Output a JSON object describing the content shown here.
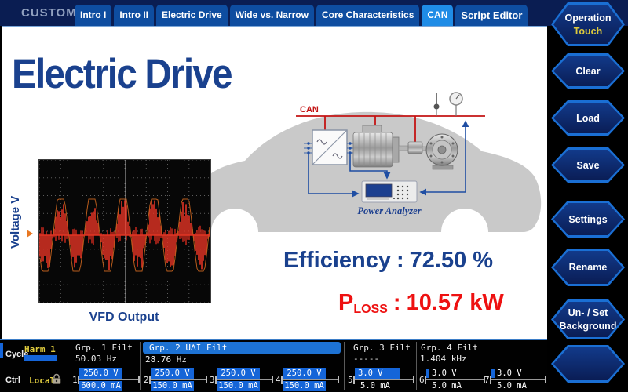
{
  "badge": "CUSTOM",
  "tabs": [
    {
      "label": "Intro I",
      "active": false
    },
    {
      "label": "Intro II",
      "active": false
    },
    {
      "label": "Electric Drive",
      "active": false
    },
    {
      "label": "Wide vs. Narrow",
      "active": false
    },
    {
      "label": "Core Characteristics",
      "active": false
    },
    {
      "label": "CAN",
      "active": true
    },
    {
      "label": "Script Editor",
      "active": false
    }
  ],
  "sidebar": {
    "buttons": [
      {
        "line1": "Operation",
        "sub": "Touch"
      },
      {
        "line1": "Clear"
      },
      {
        "line1": "Load"
      },
      {
        "line1": "Save"
      },
      {
        "line1": "Settings"
      },
      {
        "line1": "Rename"
      },
      {
        "line1": "Un- / Set",
        "line2": "Background"
      },
      {
        "line1": ""
      }
    ]
  },
  "main": {
    "title": "Electric Drive",
    "scope": {
      "ylabel": "Voltage V",
      "caption": "VFD Output",
      "cycles": 5.5
    },
    "diagram": {
      "bus_label": "CAN",
      "analyzer_label": "Power Analyzer"
    },
    "efficiency": {
      "label": "Efficiency",
      "separator": ":",
      "value": "72.50 %"
    },
    "ploss": {
      "symbol": "P",
      "subscript": "LOSS",
      "separator": ":",
      "value": "10.57 kW"
    }
  },
  "status": {
    "cycle_label": "Cycle",
    "cycle_value": "Harm 1",
    "ctrl_label": "Ctrl",
    "ctrl_value": "Local",
    "groups": [
      {
        "name": "Grp. 1 Filt",
        "freq": "50.03  Hz",
        "selected": false
      },
      {
        "name": "Grp. 2 U∆I Filt",
        "freq": "28.76  Hz",
        "selected": true
      },
      {
        "name": "Grp. 3 Filt",
        "freq": "-----",
        "selected": false
      },
      {
        "name": "Grp. 4 Filt",
        "freq": "1.404 kHz",
        "selected": false
      }
    ],
    "channels": [
      {
        "num": "1",
        "v": "250.0 V",
        "i": "600.0 mA"
      },
      {
        "num": "2",
        "v": "250.0 V",
        "i": "150.0 mA"
      },
      {
        "num": "3",
        "v": "250.0 V",
        "i": "150.0 mA"
      },
      {
        "num": "4",
        "v": "250.0 V",
        "i": "150.0 mA"
      },
      {
        "num": "5",
        "v": "3.0 V",
        "i": "5.0 mA"
      },
      {
        "num": "6",
        "v": "3.0 V",
        "i": "5.0 mA"
      },
      {
        "num": "7",
        "v": "3.0 V",
        "i": "5.0 mA"
      }
    ]
  },
  "colors": {
    "accent_blue": "#1f8ce6",
    "bar_blue": "#1565d8",
    "title_blue": "#1a418e",
    "alert_red": "#ee1111",
    "value_yellow": "#e0cc3e",
    "trace_red": "#e23424"
  }
}
